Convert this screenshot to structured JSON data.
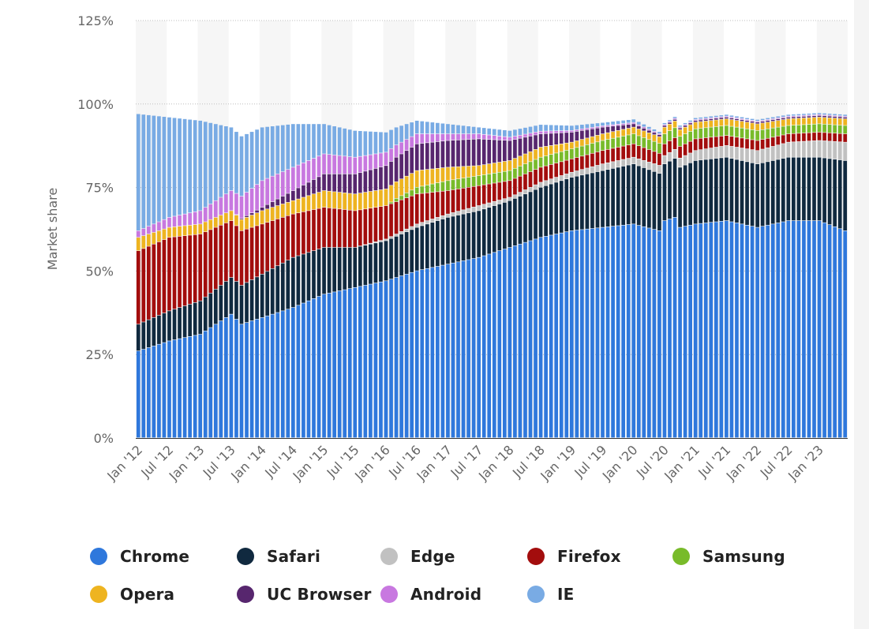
{
  "chart_data": {
    "type": "bar",
    "stacked": true,
    "ylabel": "Market share",
    "yticks": [
      "0%",
      "25%",
      "50%",
      "75%",
      "100%",
      "125%"
    ],
    "ylim": [
      0,
      125
    ],
    "xtick_labels": [
      "Jan '12",
      "Jul '12",
      "Jan '13",
      "Jul '13",
      "Jan '14",
      "Jul '14",
      "Jan '15",
      "Jul '15",
      "Jan '16",
      "Jul '16",
      "Jan '17",
      "Jul '17",
      "Jan '18",
      "Jul '18",
      "Jan '19",
      "Jul '19",
      "Jan '20",
      "Jul '20",
      "Jan '21",
      "Jul '21",
      "Jan '22",
      "Jul '22",
      "Jan '23"
    ],
    "period_start": "Jan 2012",
    "period_end": "Jun 2023",
    "legend_position": "bottom",
    "grid": true,
    "series": [
      {
        "name": "Chrome",
        "color": "#2f78dc",
        "keyframes": [
          [
            0,
            26
          ],
          [
            6,
            29
          ],
          [
            12,
            31
          ],
          [
            18,
            37
          ],
          [
            20,
            34
          ],
          [
            24,
            36
          ],
          [
            30,
            39
          ],
          [
            36,
            43
          ],
          [
            42,
            45
          ],
          [
            48,
            47
          ],
          [
            54,
            50
          ],
          [
            60,
            52
          ],
          [
            66,
            54
          ],
          [
            72,
            57
          ],
          [
            78,
            60
          ],
          [
            84,
            62
          ],
          [
            90,
            63
          ],
          [
            96,
            64
          ],
          [
            101,
            62
          ],
          [
            102,
            65
          ],
          [
            104,
            66
          ],
          [
            105,
            63
          ],
          [
            108,
            64
          ],
          [
            114,
            65
          ],
          [
            120,
            63
          ],
          [
            126,
            65
          ],
          [
            132,
            65
          ],
          [
            137,
            62
          ]
        ]
      },
      {
        "name": "Safari",
        "color": "#10293f",
        "keyframes": [
          [
            0,
            8
          ],
          [
            6,
            9
          ],
          [
            12,
            10
          ],
          [
            18,
            11
          ],
          [
            24,
            13
          ],
          [
            30,
            15
          ],
          [
            36,
            14
          ],
          [
            42,
            12
          ],
          [
            48,
            12
          ],
          [
            54,
            13
          ],
          [
            60,
            14
          ],
          [
            66,
            14
          ],
          [
            72,
            14
          ],
          [
            78,
            15
          ],
          [
            84,
            16
          ],
          [
            90,
            17
          ],
          [
            96,
            18
          ],
          [
            102,
            17
          ],
          [
            108,
            19
          ],
          [
            114,
            19
          ],
          [
            120,
            19
          ],
          [
            126,
            19
          ],
          [
            132,
            19
          ],
          [
            137,
            21
          ]
        ]
      },
      {
        "name": "Edge",
        "color": "#c1c1c1",
        "keyframes": [
          [
            0,
            0
          ],
          [
            42,
            0
          ],
          [
            48,
            0.5
          ],
          [
            54,
            1
          ],
          [
            60,
            1
          ],
          [
            66,
            1.5
          ],
          [
            72,
            1
          ],
          [
            78,
            1.5
          ],
          [
            84,
            1.5
          ],
          [
            90,
            2
          ],
          [
            96,
            2
          ],
          [
            102,
            2.5
          ],
          [
            108,
            3
          ],
          [
            114,
            3.5
          ],
          [
            120,
            4
          ],
          [
            126,
            4.5
          ],
          [
            132,
            5
          ],
          [
            137,
            5.5
          ]
        ]
      },
      {
        "name": "Firefox",
        "color": "#a30d0d",
        "keyframes": [
          [
            0,
            22
          ],
          [
            6,
            22
          ],
          [
            12,
            20
          ],
          [
            18,
            17
          ],
          [
            24,
            15
          ],
          [
            30,
            13
          ],
          [
            36,
            12
          ],
          [
            42,
            11
          ],
          [
            48,
            10
          ],
          [
            54,
            9
          ],
          [
            60,
            7
          ],
          [
            66,
            6
          ],
          [
            72,
            5
          ],
          [
            78,
            4.5
          ],
          [
            84,
            4
          ],
          [
            90,
            4
          ],
          [
            96,
            4
          ],
          [
            102,
            3.5
          ],
          [
            108,
            3.5
          ],
          [
            114,
            3
          ],
          [
            120,
            3
          ],
          [
            126,
            2.5
          ],
          [
            132,
            2.5
          ],
          [
            137,
            2.5
          ]
        ]
      },
      {
        "name": "Samsung",
        "color": "#78bb2a",
        "keyframes": [
          [
            0,
            0
          ],
          [
            48,
            0
          ],
          [
            50,
            1
          ],
          [
            54,
            2
          ],
          [
            60,
            3
          ],
          [
            66,
            3
          ],
          [
            72,
            3
          ],
          [
            78,
            3
          ],
          [
            84,
            3
          ],
          [
            90,
            3
          ],
          [
            96,
            3
          ],
          [
            102,
            3
          ],
          [
            108,
            3
          ],
          [
            114,
            3
          ],
          [
            120,
            3
          ],
          [
            126,
            2.5
          ],
          [
            132,
            2.5
          ],
          [
            137,
            2.5
          ]
        ]
      },
      {
        "name": "Opera",
        "color": "#eeb420",
        "keyframes": [
          [
            0,
            4
          ],
          [
            6,
            3
          ],
          [
            12,
            3
          ],
          [
            18,
            3
          ],
          [
            24,
            4
          ],
          [
            30,
            4
          ],
          [
            36,
            5
          ],
          [
            42,
            5
          ],
          [
            48,
            5
          ],
          [
            54,
            5
          ],
          [
            60,
            4
          ],
          [
            66,
            3
          ],
          [
            72,
            3
          ],
          [
            78,
            3
          ],
          [
            84,
            2
          ],
          [
            90,
            2
          ],
          [
            96,
            2
          ],
          [
            102,
            2
          ],
          [
            108,
            2
          ],
          [
            114,
            2
          ],
          [
            120,
            2
          ],
          [
            126,
            2
          ],
          [
            132,
            2
          ],
          [
            137,
            2
          ]
        ]
      },
      {
        "name": "UC Browser",
        "color": "#57266e",
        "keyframes": [
          [
            0,
            0
          ],
          [
            18,
            0
          ],
          [
            24,
            1
          ],
          [
            30,
            3
          ],
          [
            36,
            5
          ],
          [
            42,
            6
          ],
          [
            48,
            7
          ],
          [
            54,
            8
          ],
          [
            60,
            8
          ],
          [
            66,
            8
          ],
          [
            72,
            6
          ],
          [
            78,
            4
          ],
          [
            84,
            3
          ],
          [
            90,
            2
          ],
          [
            96,
            1
          ],
          [
            102,
            0.5
          ],
          [
            108,
            0.5
          ],
          [
            114,
            0.5
          ],
          [
            120,
            0.5
          ],
          [
            126,
            0.5
          ],
          [
            132,
            0.5
          ],
          [
            137,
            0.5
          ]
        ]
      },
      {
        "name": "Android",
        "color": "#c878e0",
        "keyframes": [
          [
            0,
            2
          ],
          [
            6,
            3
          ],
          [
            12,
            4
          ],
          [
            18,
            6
          ],
          [
            24,
            8
          ],
          [
            30,
            7
          ],
          [
            36,
            6
          ],
          [
            42,
            5
          ],
          [
            48,
            4
          ],
          [
            54,
            3
          ],
          [
            60,
            2
          ],
          [
            66,
            1.5
          ],
          [
            72,
            1
          ],
          [
            78,
            0.8
          ],
          [
            84,
            0.5
          ],
          [
            90,
            0.4
          ],
          [
            96,
            0.4
          ],
          [
            102,
            0.3
          ],
          [
            108,
            0.3
          ],
          [
            114,
            0.3
          ],
          [
            120,
            0.3
          ],
          [
            126,
            0.3
          ],
          [
            132,
            0.3
          ],
          [
            137,
            0.3
          ]
        ]
      },
      {
        "name": "IE",
        "color": "#79abe4",
        "keyframes": [
          [
            0,
            35
          ],
          [
            6,
            30
          ],
          [
            12,
            27
          ],
          [
            18,
            19
          ],
          [
            24,
            16
          ],
          [
            30,
            13
          ],
          [
            36,
            9
          ],
          [
            42,
            8
          ],
          [
            48,
            6
          ],
          [
            54,
            4
          ],
          [
            60,
            3
          ],
          [
            66,
            2
          ],
          [
            72,
            2
          ],
          [
            78,
            2
          ],
          [
            84,
            1.5
          ],
          [
            90,
            1
          ],
          [
            96,
            1
          ],
          [
            102,
            0.5
          ],
          [
            108,
            0.5
          ],
          [
            114,
            0.5
          ],
          [
            120,
            0.5
          ],
          [
            126,
            0.5
          ],
          [
            132,
            0.5
          ],
          [
            137,
            0.5
          ]
        ]
      }
    ]
  }
}
